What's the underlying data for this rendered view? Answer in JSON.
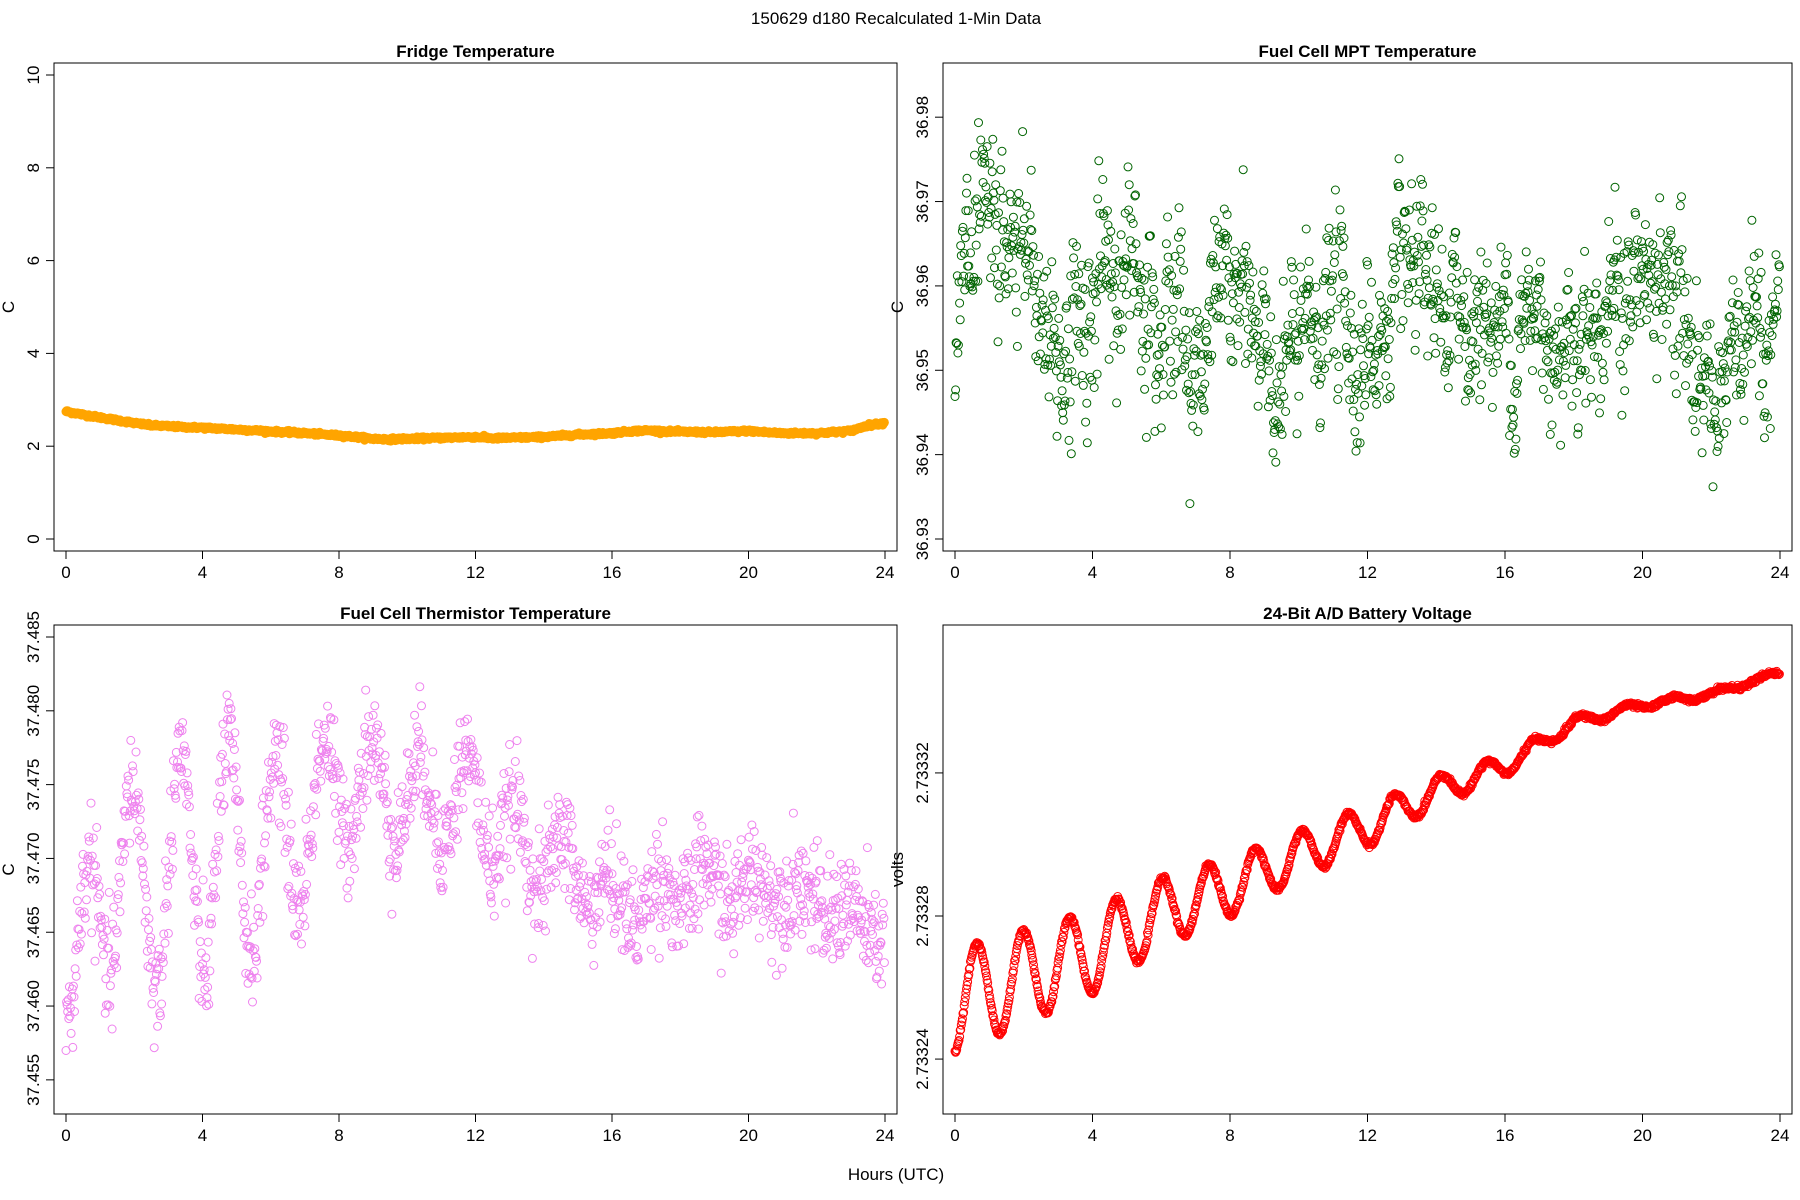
{
  "page": {
    "suptitle": "150629   d180   Recalculated 1-Min Data",
    "xlabel": "Hours (UTC)"
  },
  "chart_data": [
    {
      "type": "line",
      "title": "Fridge Temperature",
      "ylabel": "C",
      "xlim": [
        0,
        24
      ],
      "ylim": [
        0,
        10
      ],
      "xticks": [
        0,
        4,
        8,
        12,
        16,
        20,
        24
      ],
      "yticks": [
        0,
        2,
        4,
        6,
        8,
        10
      ],
      "ytick_labels": [
        "0",
        "2",
        "4",
        "6",
        "8",
        "10"
      ],
      "color": "#FFA500",
      "marker": "filled-thick",
      "x": [
        0,
        0.5,
        1,
        1.5,
        2,
        2.5,
        3,
        3.5,
        4,
        5,
        6,
        7,
        8,
        8.5,
        9,
        9.5,
        10,
        11,
        12,
        12.5,
        13,
        14,
        15,
        16,
        16.5,
        17,
        18,
        19,
        20,
        20.5,
        21,
        22,
        23,
        23.5,
        24
      ],
      "y": [
        2.75,
        2.68,
        2.62,
        2.56,
        2.5,
        2.45,
        2.43,
        2.41,
        2.4,
        2.36,
        2.32,
        2.28,
        2.23,
        2.2,
        2.16,
        2.15,
        2.16,
        2.18,
        2.2,
        2.17,
        2.18,
        2.2,
        2.25,
        2.28,
        2.32,
        2.34,
        2.31,
        2.3,
        2.33,
        2.3,
        2.28,
        2.28,
        2.33,
        2.45,
        2.5
      ]
    },
    {
      "type": "scatter",
      "title": "Fuel Cell MPT Temperature",
      "ylabel": "C",
      "xlim": [
        0,
        24
      ],
      "ylim": [
        36.93,
        36.985
      ],
      "xticks": [
        0,
        4,
        8,
        12,
        16,
        20,
        24
      ],
      "yticks": [
        36.93,
        36.94,
        36.95,
        36.96,
        36.97,
        36.98
      ],
      "ytick_labels": [
        "36.93",
        "36.94",
        "36.95",
        "36.96",
        "36.97",
        "36.98"
      ],
      "color": "#006400",
      "marker": "open-circle",
      "x": [
        0,
        1,
        2,
        3,
        4,
        5,
        6,
        7,
        8,
        9,
        10,
        11,
        12,
        13,
        14,
        15,
        16,
        17,
        18,
        19,
        20,
        21,
        22,
        23,
        24
      ],
      "y": [
        36.958,
        36.962,
        36.963,
        36.952,
        36.958,
        36.962,
        36.962,
        36.951,
        36.96,
        36.952,
        36.951,
        36.958,
        36.952,
        36.957,
        36.955,
        36.957,
        36.955,
        36.956,
        36.956,
        36.958,
        36.959,
        36.958,
        36.948,
        36.95,
        36.956
      ],
      "spread": [
        0.006,
        0.006,
        0.006,
        0.006,
        0.007,
        0.006,
        0.006,
        0.005,
        0.005,
        0.005,
        0.005,
        0.006,
        0.005,
        0.005,
        0.005,
        0.005,
        0.005,
        0.005,
        0.005,
        0.006,
        0.005,
        0.005,
        0.005,
        0.005,
        0.005
      ],
      "n_points": 1440
    },
    {
      "type": "scatter",
      "title": "Fuel Cell Thermistor Temperature",
      "ylabel": "C",
      "xlim": [
        0,
        24
      ],
      "ylim": [
        37.4535,
        37.485
      ],
      "xticks": [
        0,
        4,
        8,
        12,
        16,
        20,
        24
      ],
      "yticks": [
        37.455,
        37.46,
        37.465,
        37.47,
        37.475,
        37.48,
        37.485
      ],
      "ytick_labels": [
        "37.455",
        "37.460",
        "37.465",
        "37.470",
        "37.475",
        "37.480",
        "37.485"
      ],
      "color": "#EE82EE",
      "marker": "open-circle",
      "x": [
        0,
        0.5,
        1,
        2,
        3,
        4,
        5,
        6,
        7,
        8,
        9,
        10,
        11,
        12,
        13,
        14,
        15,
        16,
        17,
        18,
        19,
        20,
        21,
        22,
        23,
        24
      ],
      "y": [
        37.46,
        37.462,
        37.469,
        37.468,
        37.469,
        37.47,
        37.47,
        37.471,
        37.472,
        37.475,
        37.475,
        37.474,
        37.474,
        37.474,
        37.471,
        37.47,
        37.469,
        37.467,
        37.467,
        37.468,
        37.468,
        37.468,
        37.468,
        37.467,
        37.466,
        37.465
      ],
      "amp": [
        0.002,
        0.006,
        0.007,
        0.007,
        0.008,
        0.008,
        0.008,
        0.006,
        0.005,
        0.004,
        0.003,
        0.003,
        0.003,
        0.003,
        0.003,
        0.0025,
        0.002,
        0.0015,
        0.0015,
        0.0015,
        0.0015,
        0.0012,
        0.001,
        0.001,
        0.001,
        0.001
      ],
      "spread": 0.0018,
      "oscillation_period_hours": 1.4,
      "n_points": 1440
    },
    {
      "type": "line",
      "title": "24-Bit A/D Battery Voltage",
      "ylabel": "volts",
      "xlim": [
        0,
        24
      ],
      "ylim": [
        2.733228,
        2.733358
      ],
      "xticks": [
        0,
        4,
        8,
        12,
        16,
        20,
        24
      ],
      "yticks": [
        2.73324,
        2.73328,
        2.73332
      ],
      "ytick_labels": [
        "2.73324",
        "2.73328",
        "2.73332"
      ],
      "color": "#FF0000",
      "marker": "open-circle",
      "x": [
        0,
        2,
        4,
        6,
        8,
        10,
        12,
        14,
        16,
        18,
        20,
        22,
        24
      ],
      "y": [
        2.733256,
        2.733263,
        2.73327,
        2.733281,
        2.733288,
        2.733297,
        2.733305,
        2.733315,
        2.733322,
        2.733334,
        2.733339,
        2.733342,
        2.733348
      ],
      "amp": [
        1.45e-05,
        1.3e-05,
        1.15e-05,
        9.5e-06,
        8e-06,
        6.5e-06,
        5.5e-06,
        4e-06,
        2.8e-06,
        1.5e-06,
        1e-06,
        8e-07,
        6e-07
      ],
      "oscillation_period_hours": 1.35,
      "n_points": 1440
    }
  ]
}
